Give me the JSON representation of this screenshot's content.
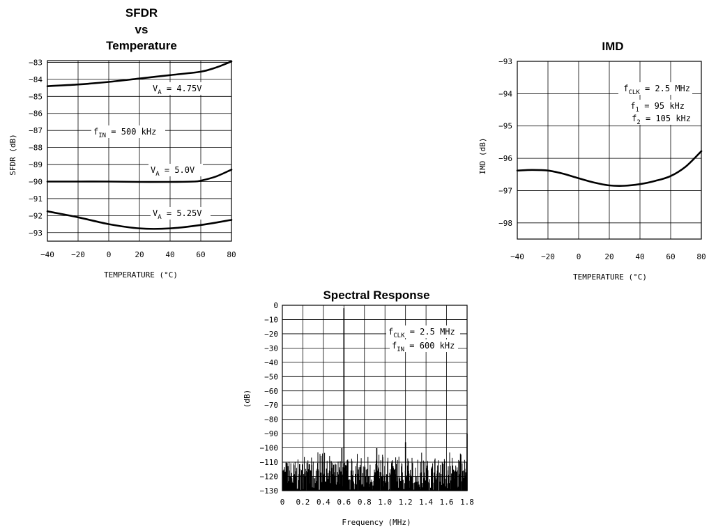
{
  "chart_data": [
    {
      "id": "sfdr",
      "type": "line",
      "title_lines": [
        "SFDR",
        "vs",
        "Temperature"
      ],
      "xlabel": "TEMPERATURE (°C)",
      "ylabel": "SFDR (dB)",
      "xlim": [
        -40,
        80
      ],
      "ylim": [
        -93.5,
        -82.9
      ],
      "xticks": [
        -40,
        -20,
        0,
        20,
        40,
        60,
        80
      ],
      "yticks": [
        -83,
        -84,
        -85,
        -86,
        -87,
        -88,
        -89,
        -90,
        -91,
        -92,
        -93
      ],
      "grid": true,
      "series": [
        {
          "name": "VA = 4.75V",
          "x": [
            -40,
            -20,
            0,
            20,
            40,
            60,
            70,
            80
          ],
          "y": [
            -84.4,
            -84.3,
            -84.15,
            -83.95,
            -83.75,
            -83.55,
            -83.3,
            -82.95
          ]
        },
        {
          "name": "VA = 5.0V",
          "x": [
            -40,
            -20,
            0,
            20,
            40,
            55,
            60,
            70,
            80
          ],
          "y": [
            -90.0,
            -90.0,
            -90.0,
            -90.02,
            -90.02,
            -90.0,
            -89.95,
            -89.7,
            -89.3
          ]
        },
        {
          "name": "VA = 5.25V",
          "x": [
            -40,
            -20,
            0,
            20,
            40,
            60,
            80
          ],
          "y": [
            -91.75,
            -92.1,
            -92.5,
            -92.75,
            -92.75,
            -92.55,
            -92.25
          ]
        }
      ],
      "annotations": [
        {
          "main": "V",
          "sub": "A",
          "rest": " = 4.75V"
        },
        {
          "main": "f",
          "sub": "IN",
          "rest": " = 500 kHz"
        },
        {
          "main": "V",
          "sub": "A",
          "rest": " = 5.0V"
        },
        {
          "main": "V",
          "sub": "A",
          "rest": " = 5.25V"
        }
      ]
    },
    {
      "id": "imd",
      "type": "line",
      "title": "IMD",
      "xlabel": "TEMPERATURE (°C)",
      "ylabel": "IMD (dB)",
      "xlim": [
        -40,
        80
      ],
      "ylim": [
        -98.5,
        -93
      ],
      "xticks": [
        -40,
        -20,
        0,
        20,
        40,
        60,
        80
      ],
      "yticks": [
        -93,
        -94,
        -95,
        -96,
        -97,
        -98
      ],
      "grid": true,
      "series": [
        {
          "x": [
            -40,
            -30,
            -20,
            -10,
            0,
            10,
            20,
            30,
            40,
            50,
            60,
            70,
            80
          ],
          "y": [
            -96.38,
            -96.36,
            -96.38,
            -96.48,
            -96.62,
            -96.75,
            -96.84,
            -96.85,
            -96.8,
            -96.7,
            -96.55,
            -96.25,
            -95.78
          ]
        }
      ],
      "annotations": [
        {
          "main": "f",
          "sub": "CLK",
          "rest": " = 2.5 MHz"
        },
        {
          "main": "f",
          "sub": "1",
          "rest": " = 95 kHz"
        },
        {
          "main": "f",
          "sub": "2",
          "rest": " = 105 kHz"
        }
      ]
    },
    {
      "id": "spectral",
      "type": "line",
      "title": "Spectral Response",
      "xlabel": "Frequency (MHz)",
      "ylabel": "(dB)",
      "xlim": [
        0,
        1.8
      ],
      "ylim": [
        -130,
        0
      ],
      "xticks": [
        0,
        0.2,
        0.4,
        0.6,
        0.8,
        1.0,
        1.2,
        1.4,
        1.6,
        1.8
      ],
      "xtick_labels": [
        "0",
        "0.2",
        "0.4",
        "0.6",
        "0.8",
        "1.0",
        "1.2",
        "1.4",
        "1.6",
        "1.8"
      ],
      "yticks": [
        0,
        -10,
        -20,
        -30,
        -40,
        -50,
        -60,
        -70,
        -80,
        -90,
        -100,
        -110,
        -120,
        -130
      ],
      "grid": true,
      "noise_floor_db": [
        -130,
        -108
      ],
      "peaks": [
        {
          "x": 0.6,
          "y": -2
        },
        {
          "x": 1.2,
          "y": -96
        },
        {
          "x": 1.8,
          "y": -90
        },
        {
          "x": 0.92,
          "y": -100
        },
        {
          "x": 0.58,
          "y": -100
        }
      ],
      "annotations": [
        {
          "main": "f",
          "sub": "CLK",
          "rest": " = 2.5 MHz"
        },
        {
          "main": "f",
          "sub": "IN",
          "rest": " = 600 kHz"
        }
      ]
    }
  ]
}
